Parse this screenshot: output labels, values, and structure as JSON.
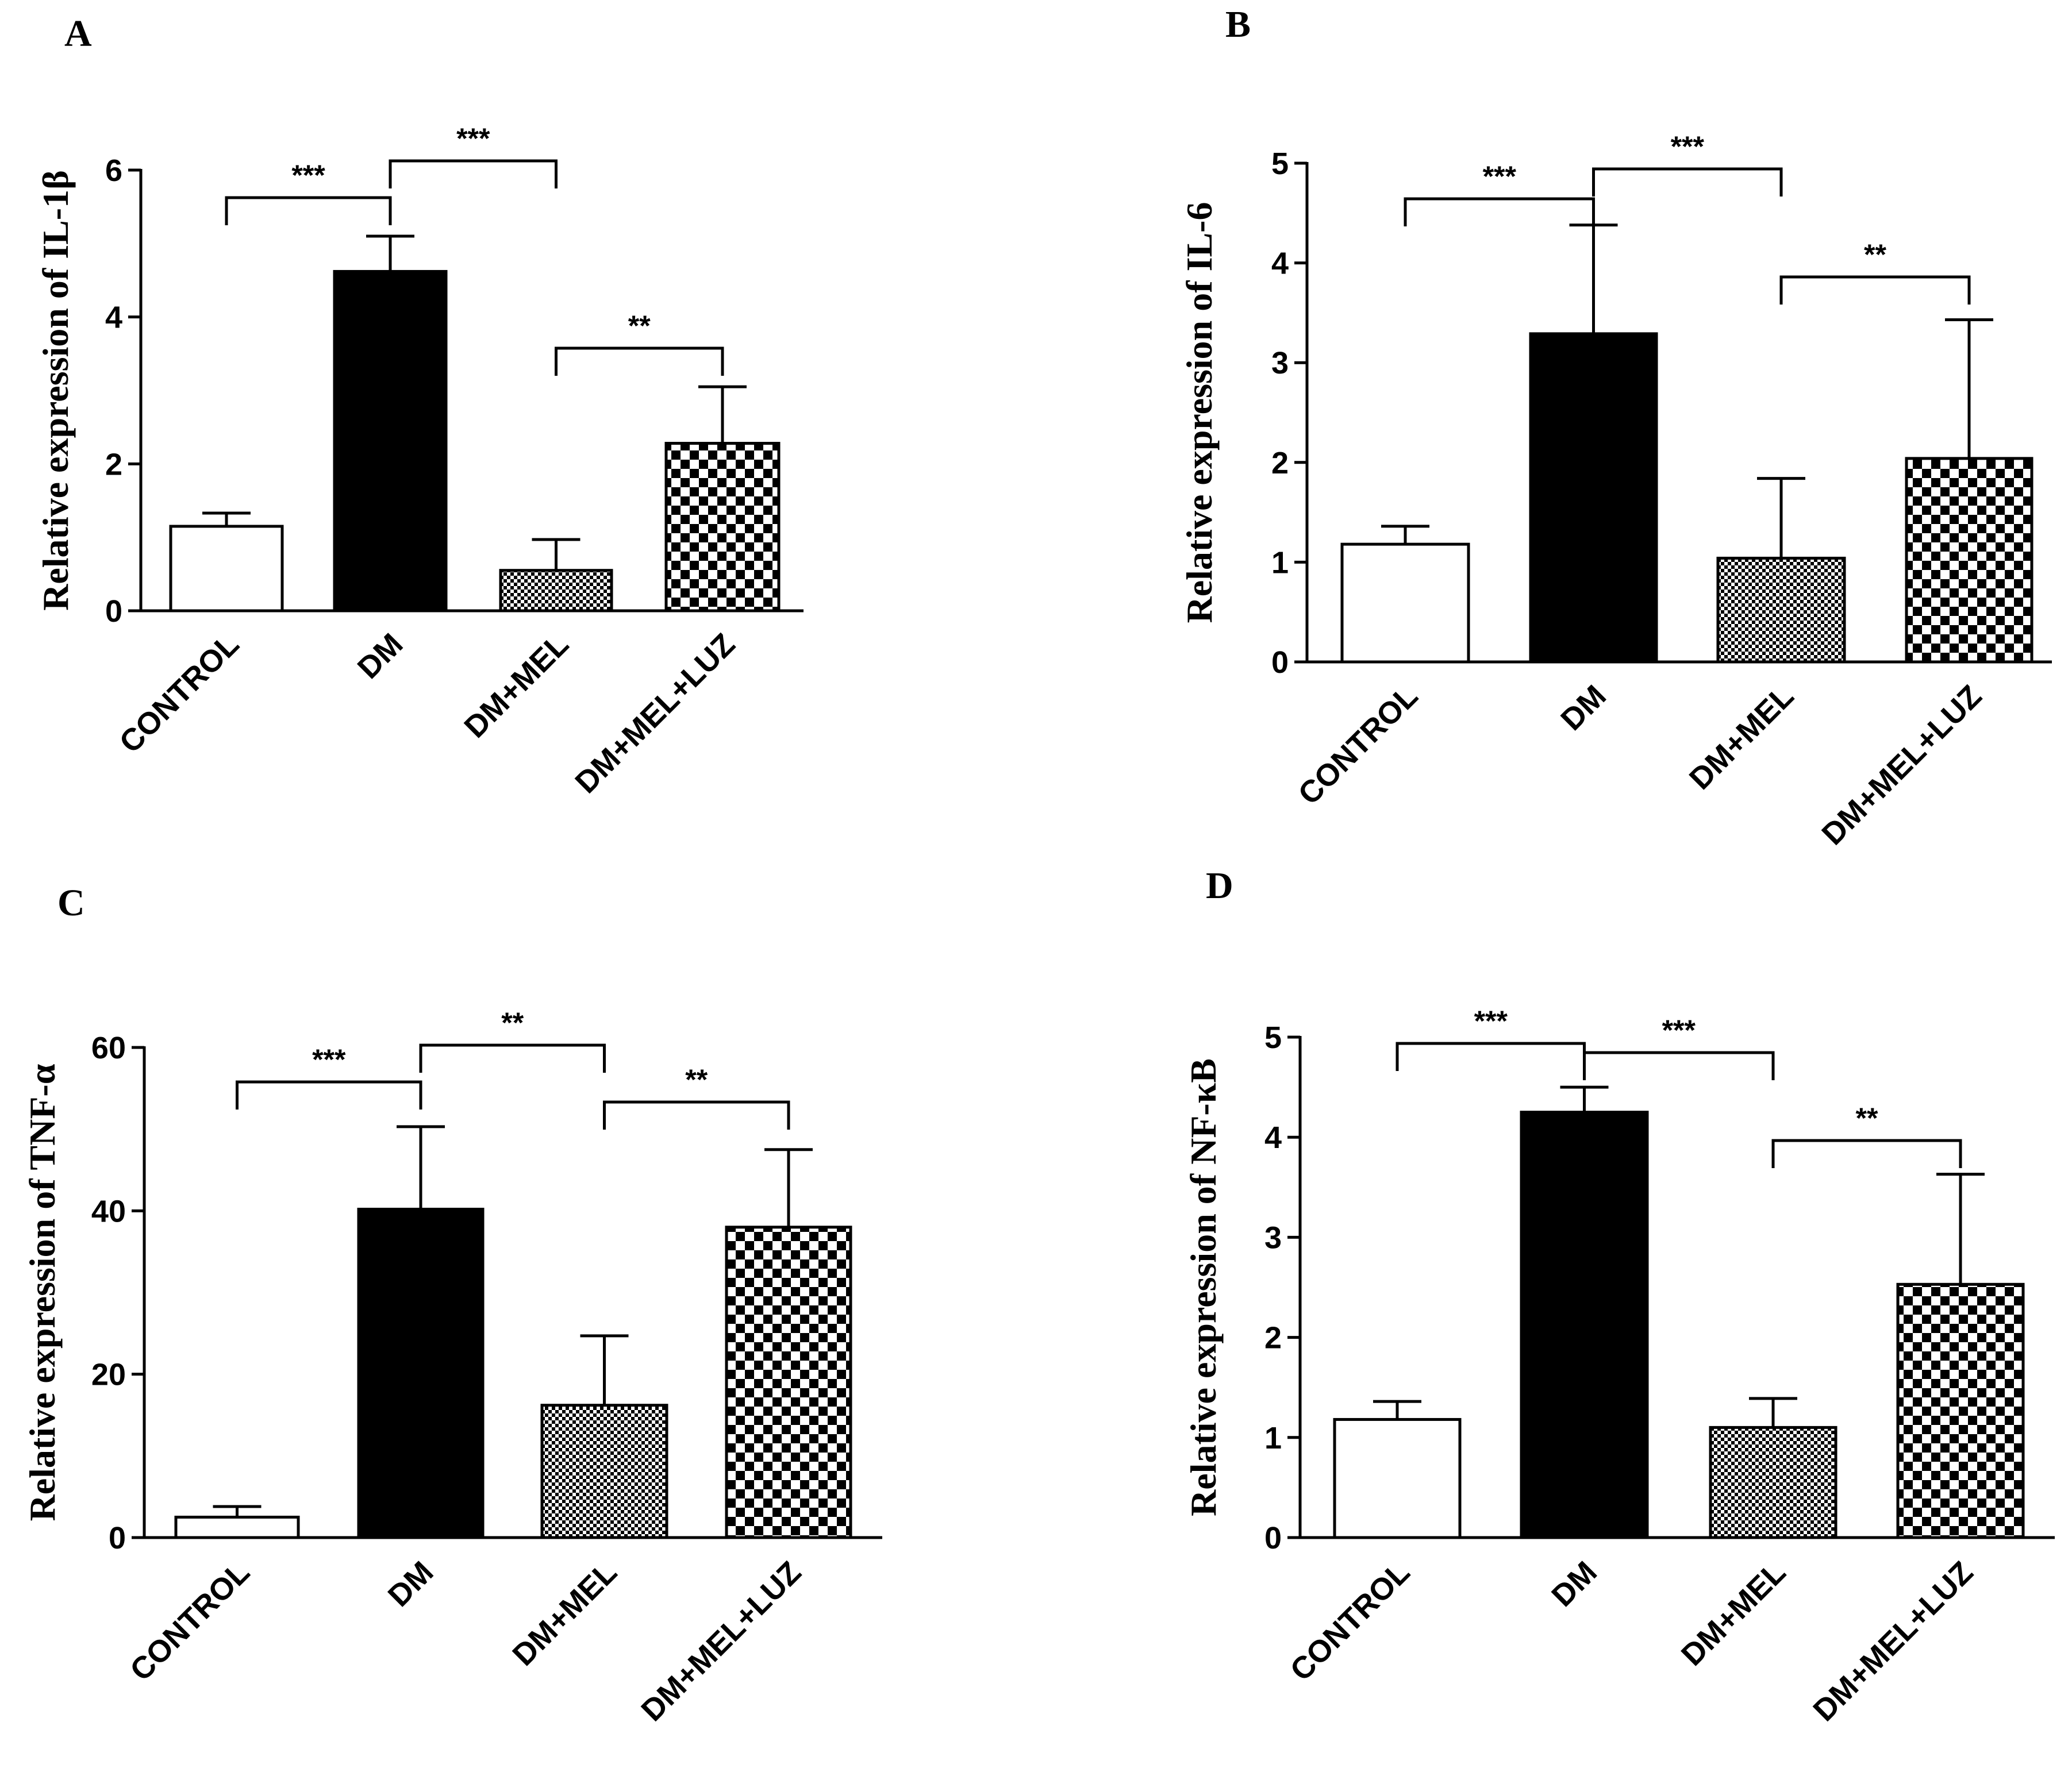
{
  "figure": {
    "patterns": {
      "CONTROL": "white",
      "DM": "black",
      "DM+MEL": "fine-checker",
      "DM+MEL+LUZ": "coarse-checker"
    }
  },
  "chart_data": [
    {
      "panel": "A",
      "type": "bar",
      "title": "",
      "xlabel": "",
      "ylabel": "Relative expression of IL-1β",
      "categories": [
        "CONTROL",
        "DM",
        "DM+MEL",
        "DM+MEL+LUZ"
      ],
      "values": [
        1.15,
        4.62,
        0.55,
        2.28
      ],
      "errors": [
        0.18,
        0.48,
        0.42,
        0.77
      ],
      "ylim": [
        0,
        6
      ],
      "yticks": [
        0,
        2,
        4,
        6
      ],
      "significance": [
        {
          "from": 0,
          "to": 1,
          "label": "***"
        },
        {
          "from": 1,
          "to": 2,
          "label": "***"
        },
        {
          "from": 2,
          "to": 3,
          "label": "**"
        }
      ]
    },
    {
      "panel": "B",
      "type": "bar",
      "title": "",
      "xlabel": "",
      "ylabel": "Relative expression of IL-6",
      "categories": [
        "CONTROL",
        "DM",
        "DM+MEL",
        "DM+MEL+LUZ"
      ],
      "values": [
        1.18,
        3.29,
        1.04,
        2.04
      ],
      "errors": [
        0.18,
        1.09,
        0.8,
        1.39
      ],
      "ylim": [
        0,
        5
      ],
      "yticks": [
        0,
        1,
        2,
        3,
        4,
        5
      ],
      "significance": [
        {
          "from": 0,
          "to": 1,
          "label": "***"
        },
        {
          "from": 1,
          "to": 2,
          "label": "***"
        },
        {
          "from": 2,
          "to": 3,
          "label": "**"
        }
      ]
    },
    {
      "panel": "C",
      "type": "bar",
      "title": "",
      "xlabel": "",
      "ylabel": "Relative expression of TNF-α",
      "categories": [
        "CONTROL",
        "DM",
        "DM+MEL",
        "DM+MEL+LUZ"
      ],
      "values": [
        2.5,
        40.2,
        16.2,
        38.0
      ],
      "errors": [
        1.3,
        10.1,
        8.5,
        9.5
      ],
      "ylim": [
        0,
        60
      ],
      "yticks": [
        0,
        20,
        40,
        60
      ],
      "significance": [
        {
          "from": 0,
          "to": 1,
          "label": "***"
        },
        {
          "from": 1,
          "to": 2,
          "label": "**"
        },
        {
          "from": 2,
          "to": 3,
          "label": "**"
        }
      ]
    },
    {
      "panel": "D",
      "type": "bar",
      "title": "",
      "xlabel": "",
      "ylabel": "Relative expression of NF-κB",
      "categories": [
        "CONTROL",
        "DM",
        "DM+MEL",
        "DM+MEL+LUZ"
      ],
      "values": [
        1.18,
        4.25,
        1.1,
        2.53
      ],
      "errors": [
        0.18,
        0.25,
        0.29,
        1.1
      ],
      "ylim": [
        0,
        5
      ],
      "yticks": [
        0,
        1,
        2,
        3,
        4,
        5
      ],
      "significance": [
        {
          "from": 0,
          "to": 1,
          "label": "***"
        },
        {
          "from": 1,
          "to": 2,
          "label": "***"
        },
        {
          "from": 2,
          "to": 3,
          "label": "**"
        }
      ]
    }
  ]
}
